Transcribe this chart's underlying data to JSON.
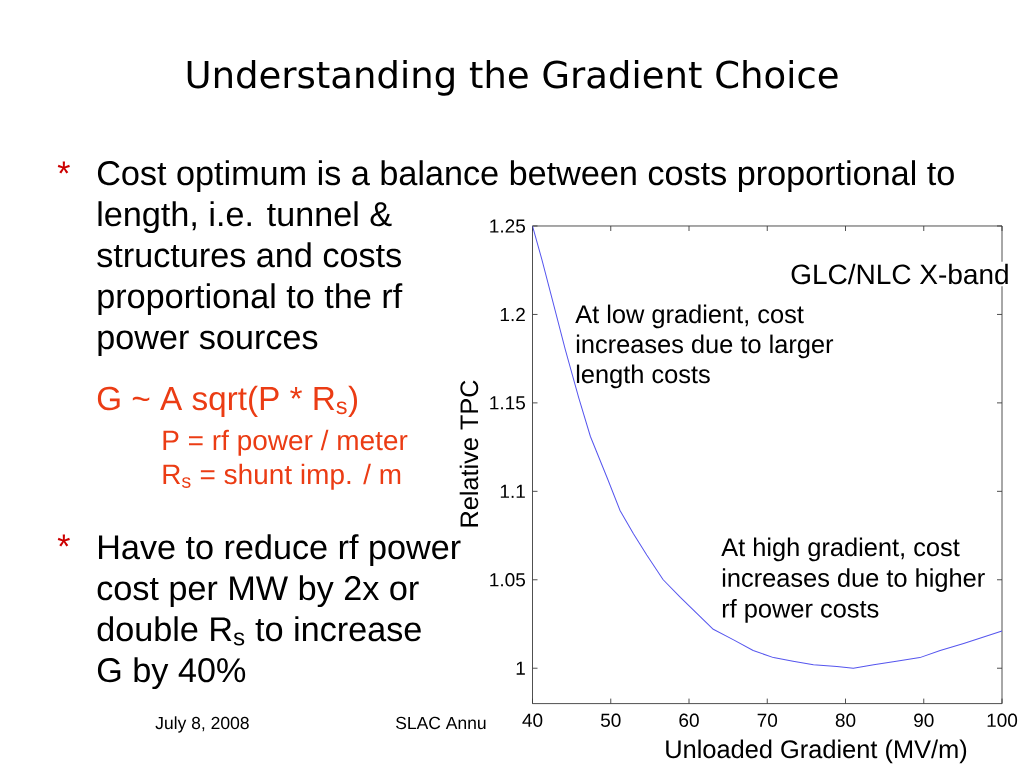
{
  "chart_data": {
    "type": "line",
    "title": "Understanding the Gradient Choice",
    "xlabel": "Unloaded Gradient (MV/m)",
    "ylabel": "Relative TPC",
    "x": [
      40,
      41.2,
      42.5,
      44.2,
      45.9,
      47.4,
      49.6,
      51.2,
      52.9,
      54.6,
      56.7,
      58.9,
      61,
      63.1,
      65.7,
      68.2,
      70.8,
      73.3,
      75.9,
      78.9,
      81,
      83.6,
      86.5,
      89.5,
      92.1,
      95.1,
      100
    ],
    "series": [
      {
        "color": "#5555ee",
        "values": [
          1.25,
          1.231,
          1.209,
          1.18,
          1.153,
          1.131,
          1.107,
          1.089,
          1.076,
          1.064,
          1.05,
          1.04,
          1.031,
          1.022,
          1.016,
          1.01,
          1.006,
          1.004,
          1.002,
          1.001,
          1.0,
          1.002,
          1.004,
          1.006,
          1.01,
          1.014,
          1.021
        ]
      }
    ],
    "xlim": [
      40,
      100
    ],
    "ylim": [
      0.98,
      1.25
    ],
    "xticks": [
      40,
      50,
      60,
      70,
      80,
      90,
      100
    ],
    "yticks": [
      1,
      1.05,
      1.1,
      1.15,
      1.2,
      1.25
    ],
    "line_style": "solid",
    "annotations": [
      "GLC/NLC X-band",
      "At low gradient, cost increases due to larger length costs",
      "At high gradient, cost increases due to higher rf power costs",
      "*",
      "Cost optimum is a balance between costs proportional to",
      "length, i.e. tunnel & structures and costs proportional to the rf power sources",
      "G ~ A sqrt(P * R$_{s}$)",
      "P = rf power / meter",
      "R$_{s}$ = shunt imp. / m",
      "*",
      "Have to reduce rf power cost per MW by 2x or double R$_{s}$ to increase G by 40%",
      "July 8, 2008",
      "SLAC Annu"
    ]
  }
}
